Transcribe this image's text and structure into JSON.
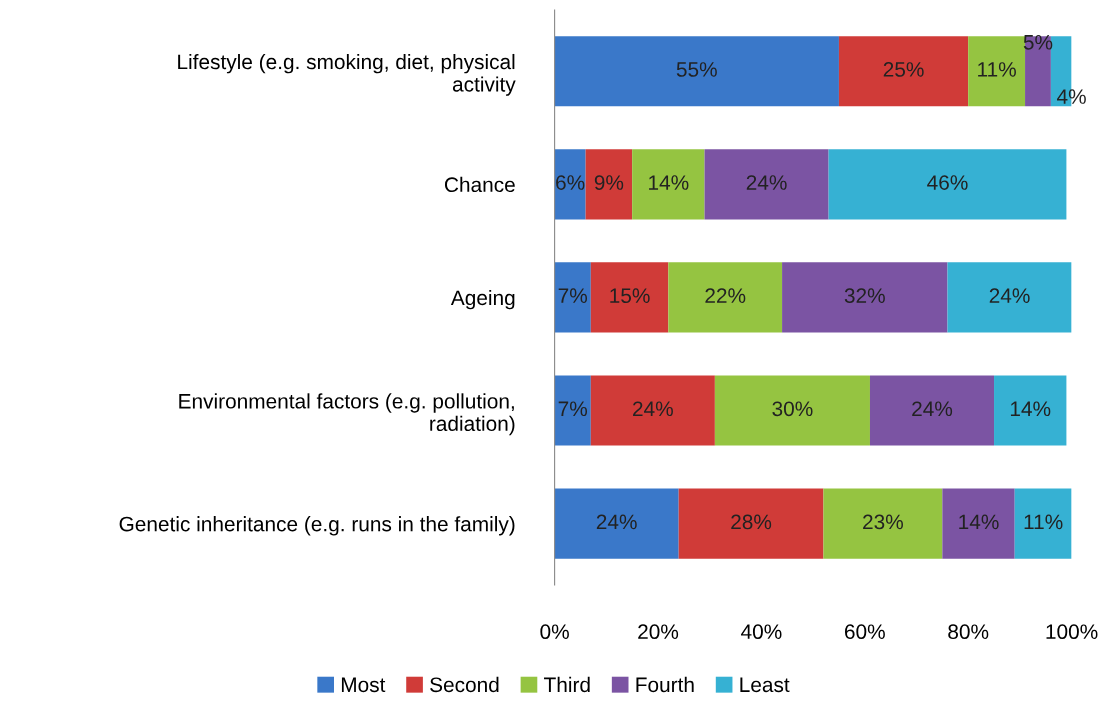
{
  "chart_data": {
    "type": "bar",
    "orientation": "horizontal",
    "stacked": true,
    "categories": [
      "Lifestyle (e.g. smoking, diet, physical\nactivity",
      "Chance",
      "Ageing",
      "Environmental factors (e.g. pollution,\nradiation)",
      "Genetic inheritance (e.g. runs in the family)"
    ],
    "series": [
      {
        "name": "Most",
        "color": "#3a78c9",
        "values": [
          55,
          6,
          7,
          7,
          24
        ],
        "value_labels": [
          "55%",
          "6%",
          "7%",
          "7%",
          "24%"
        ]
      },
      {
        "name": "Second",
        "color": "#d03b38",
        "values": [
          25,
          9,
          15,
          24,
          28
        ],
        "value_labels": [
          "25%",
          "9%",
          "15%",
          "24%",
          "28%"
        ]
      },
      {
        "name": "Third",
        "color": "#95c441",
        "values": [
          11,
          14,
          22,
          30,
          23
        ],
        "value_labels": [
          "11%",
          "14%",
          "22%",
          "30%",
          "23%"
        ]
      },
      {
        "name": "Fourth",
        "color": "#7b54a3",
        "values": [
          5,
          24,
          32,
          24,
          14
        ],
        "value_labels": [
          "5%",
          "24%",
          "32%",
          "24%",
          "14%"
        ]
      },
      {
        "name": "Least",
        "color": "#36b1d3",
        "values": [
          4,
          46,
          24,
          14,
          11
        ],
        "value_labels": [
          "4%",
          "46%",
          "24%",
          "14%",
          "11%"
        ]
      }
    ],
    "xlim": [
      0,
      100
    ],
    "xticks": [
      {
        "value": 0,
        "label": "0%"
      },
      {
        "value": 20,
        "label": "20%"
      },
      {
        "value": 40,
        "label": "40%"
      },
      {
        "value": 60,
        "label": "60%"
      },
      {
        "value": 80,
        "label": "80%"
      },
      {
        "value": 100,
        "label": "100%"
      }
    ],
    "grid": false,
    "legend": "bottom"
  }
}
